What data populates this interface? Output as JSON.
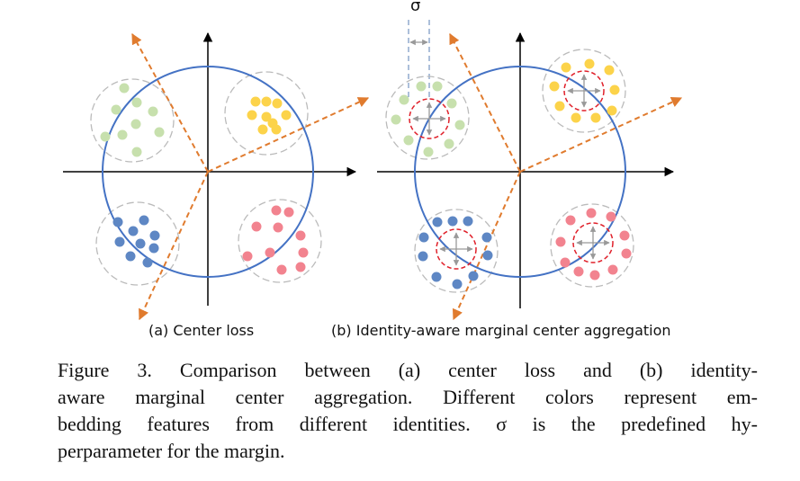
{
  "sigma_symbol": "σ",
  "panels": {
    "a": {
      "label": "(a) Center loss"
    },
    "b": {
      "label": "(b) Identity-aware marginal center aggregation"
    }
  },
  "caption": {
    "lines": [
      "Figure 3. Comparison between (a) center loss and (b) identity-",
      "aware marginal center aggregation. Different colors represent em-",
      "bedding features from different identities. σ is the predefined hy-",
      "perparameter for the margin."
    ]
  },
  "colors": {
    "green": "#c7e0ad",
    "yellow": "#fcd34a",
    "blue": "#5e87c4",
    "red": "#f2838f",
    "circle": "#4472c4",
    "arrow": "#e07b2e",
    "margin": "#e0202a",
    "cluster_outline": "#bbbbbb",
    "inner_arrow": "#999999"
  }
}
